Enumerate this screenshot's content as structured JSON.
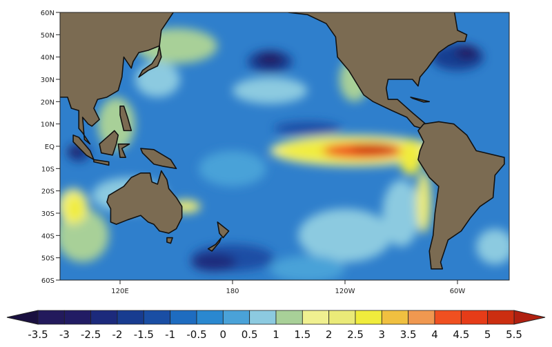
{
  "map": {
    "lat_ticks": [
      "60N",
      "50N",
      "40N",
      "30N",
      "20N",
      "10N",
      "EQ",
      "10S",
      "20S",
      "30S",
      "40S",
      "50S",
      "60S"
    ],
    "lon_ticks": [
      "120E",
      "180",
      "120W",
      "60W"
    ],
    "land_color": "#7b6b52",
    "ocean_color": "#2f7fcc",
    "coast_color": "#111111"
  },
  "colorbar": {
    "labels": [
      "-3.5",
      "-3",
      "-2.5",
      "-2",
      "-1.5",
      "-1",
      "-0.5",
      "0",
      "0.5",
      "1",
      "1.5",
      "2",
      "2.5",
      "3",
      "3.5",
      "4",
      "4.5",
      "5",
      "5.5"
    ],
    "low_color": "#1a1040",
    "high_color": "#b02010",
    "colors": [
      "#231a5c",
      "#221c64",
      "#1c2a7c",
      "#183c90",
      "#1a4ea4",
      "#1e6cc0",
      "#2a88d0",
      "#4aa2d8",
      "#8ccae0",
      "#a8d098",
      "#f0f090",
      "#eaea78",
      "#f0ec3c",
      "#f0c040",
      "#f09850",
      "#f05020",
      "#e63c18",
      "#cc2e10"
    ]
  }
}
